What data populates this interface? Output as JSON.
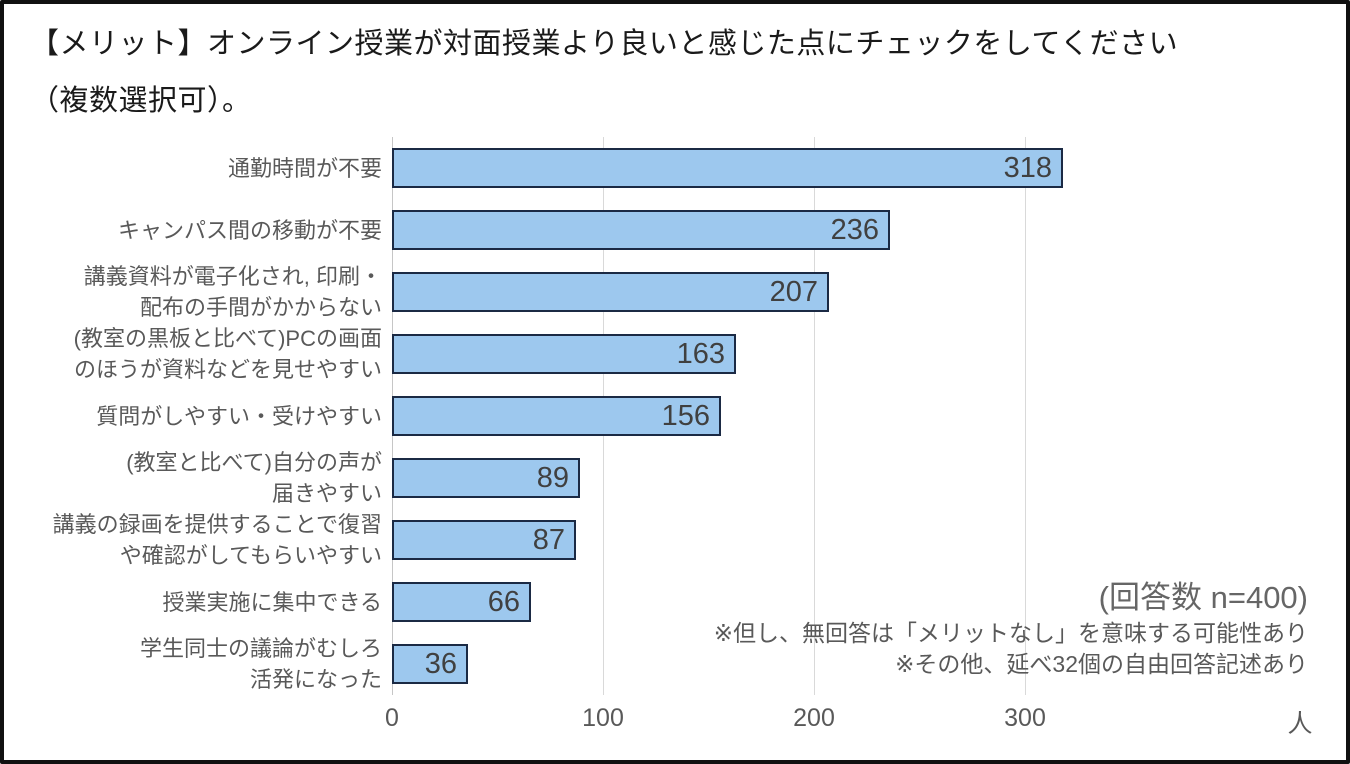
{
  "title": "【メリット】オンライン授業が対面授業より良いと感じた点にチェックをしてください\n（複数選択可）。",
  "chart_data": {
    "type": "bar",
    "orientation": "horizontal",
    "title": "【メリット】オンライン授業が対面授業より良いと感じた点にチェックをしてください（複数選択可）。",
    "categories": [
      "通勤時間が不要",
      "キャンパス間の移動が不要",
      "講義資料が電子化され, 印刷・\n配布の手間がかからない",
      "(教室の黒板と比べて)PCの画面\nのほうが資料などを見せやすい",
      "質問がしやすい・受けやすい",
      "(教室と比べて)自分の声が\n届きやすい",
      "講義の録画を提供することで復習\nや確認がしてもらいやすい",
      "授業実施に集中できる",
      "学生同士の議論がむしろ\n活発になった"
    ],
    "values": [
      318,
      236,
      207,
      163,
      156,
      89,
      87,
      66,
      36
    ],
    "x_ticks": [
      0,
      100,
      200,
      300
    ],
    "x_unit": "人",
    "xlim": [
      0,
      438
    ],
    "grid": "vertical-light-gray",
    "value_labels": "inside-end",
    "bar_fill": "#9dc8ee",
    "bar_border": "#1b2a44",
    "text_color": "#595959",
    "value_color": "#404040"
  },
  "annotations": {
    "respondents": "(回答数 n=400)",
    "note1": "※但し、無回答は「メリットなし」を意味する可能性あり",
    "note2": "※その他、延べ32個の自由回答記述あり"
  }
}
